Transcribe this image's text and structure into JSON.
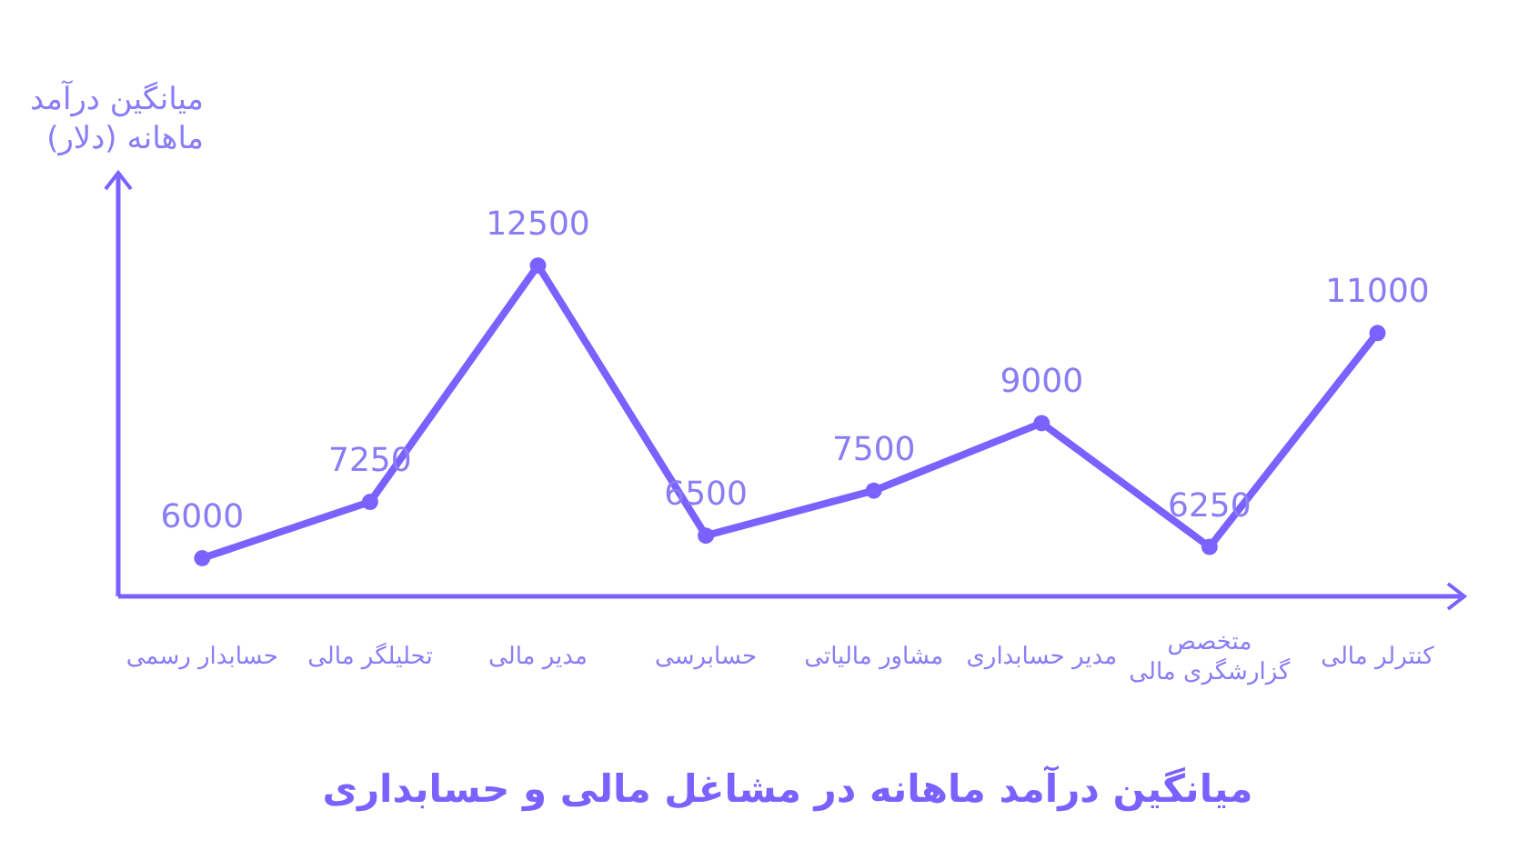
{
  "chart_data": {
    "type": "line",
    "title": "میانگین درآمد ماهانه در مشاغل مالی و حسابداری",
    "ylabel": "میانگین درآمد ماهانه (دلار)",
    "categories": [
      "حسابدار رسمی",
      "تحلیلگر مالی",
      "مدیر مالی",
      "حسابرسی",
      "مشاور مالیاتی",
      "مدیر حسابداری",
      "متخصص گزارشگری مالی",
      "کنترلر مالی"
    ],
    "series": [
      {
        "color": "#7b61ff",
        "values": [
          6000,
          7250,
          12500,
          6500,
          7500,
          9000,
          6250,
          11000
        ]
      }
    ],
    "tick_labels": "x",
    "data_labels": true,
    "marker": "circle",
    "line_style": "solid"
  }
}
